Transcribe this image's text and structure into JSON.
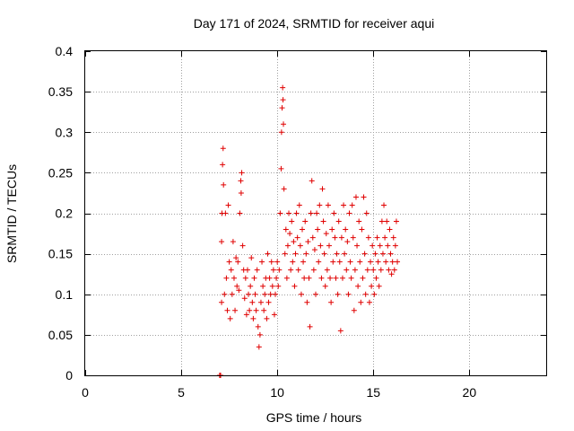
{
  "chart_data": {
    "type": "scatter",
    "title": "Day 171 of 2024, SRMTID for receiver aqui",
    "xlabel": "GPS time / hours",
    "ylabel": "SRMTID / TECUs",
    "xlim": [
      0,
      24
    ],
    "ylim": [
      0,
      0.4
    ],
    "x_ticks": [
      0,
      5,
      10,
      15,
      20
    ],
    "x_tick_labels": [
      "0",
      "5",
      "10",
      "15",
      "20"
    ],
    "y_ticks": [
      0,
      0.05,
      0.1,
      0.15,
      0.2,
      0.25,
      0.3,
      0.35,
      0.4
    ],
    "y_tick_labels": [
      "0",
      "0.05",
      "0.1",
      "0.15",
      "0.2",
      "0.25",
      "0.3",
      "0.35",
      "0.4"
    ],
    "grid": true,
    "marker": "plus",
    "marker_color": "#e00000",
    "series": [
      {
        "name": "SRMTID",
        "points": [
          [
            7.0,
            0.0
          ],
          [
            7.05,
            0.0
          ],
          [
            7.1,
            0.09
          ],
          [
            7.1,
            0.165
          ],
          [
            7.12,
            0.2
          ],
          [
            7.15,
            0.26
          ],
          [
            7.18,
            0.28
          ],
          [
            7.2,
            0.235
          ],
          [
            7.25,
            0.1
          ],
          [
            7.3,
            0.2
          ],
          [
            7.35,
            0.12
          ],
          [
            7.4,
            0.08
          ],
          [
            7.45,
            0.21
          ],
          [
            7.5,
            0.14
          ],
          [
            7.55,
            0.07
          ],
          [
            7.6,
            0.13
          ],
          [
            7.65,
            0.1
          ],
          [
            7.7,
            0.165
          ],
          [
            7.75,
            0.12
          ],
          [
            7.8,
            0.08
          ],
          [
            7.85,
            0.145
          ],
          [
            7.9,
            0.11
          ],
          [
            7.95,
            0.14
          ],
          [
            8.0,
            0.105
          ],
          [
            8.05,
            0.2
          ],
          [
            8.1,
            0.24
          ],
          [
            8.12,
            0.225
          ],
          [
            8.15,
            0.25
          ],
          [
            8.2,
            0.16
          ],
          [
            8.25,
            0.13
          ],
          [
            8.3,
            0.095
          ],
          [
            8.35,
            0.12
          ],
          [
            8.4,
            0.075
          ],
          [
            8.45,
            0.13
          ],
          [
            8.5,
            0.1
          ],
          [
            8.55,
            0.08
          ],
          [
            8.6,
            0.11
          ],
          [
            8.65,
            0.145
          ],
          [
            8.7,
            0.09
          ],
          [
            8.75,
            0.07
          ],
          [
            8.8,
            0.12
          ],
          [
            8.85,
            0.1
          ],
          [
            8.9,
            0.08
          ],
          [
            8.95,
            0.13
          ],
          [
            9.0,
            0.06
          ],
          [
            9.05,
            0.035
          ],
          [
            9.1,
            0.05
          ],
          [
            9.15,
            0.09
          ],
          [
            9.2,
            0.14
          ],
          [
            9.25,
            0.11
          ],
          [
            9.3,
            0.08
          ],
          [
            9.35,
            0.1
          ],
          [
            9.4,
            0.12
          ],
          [
            9.45,
            0.07
          ],
          [
            9.5,
            0.15
          ],
          [
            9.55,
            0.09
          ],
          [
            9.6,
            0.12
          ],
          [
            9.65,
            0.1
          ],
          [
            9.7,
            0.14
          ],
          [
            9.75,
            0.11
          ],
          [
            9.8,
            0.13
          ],
          [
            9.85,
            0.075
          ],
          [
            9.9,
            0.1
          ],
          [
            9.95,
            0.12
          ],
          [
            10.0,
            0.14
          ],
          [
            10.05,
            0.11
          ],
          [
            10.1,
            0.13
          ],
          [
            10.15,
            0.2
          ],
          [
            10.2,
            0.255
          ],
          [
            10.22,
            0.3
          ],
          [
            10.25,
            0.33
          ],
          [
            10.28,
            0.355
          ],
          [
            10.3,
            0.34
          ],
          [
            10.32,
            0.31
          ],
          [
            10.35,
            0.23
          ],
          [
            10.4,
            0.15
          ],
          [
            10.45,
            0.18
          ],
          [
            10.5,
            0.12
          ],
          [
            10.55,
            0.16
          ],
          [
            10.6,
            0.2
          ],
          [
            10.65,
            0.175
          ],
          [
            10.7,
            0.13
          ],
          [
            10.75,
            0.19
          ],
          [
            10.8,
            0.14
          ],
          [
            10.85,
            0.165
          ],
          [
            10.9,
            0.11
          ],
          [
            10.95,
            0.15
          ],
          [
            11.0,
            0.2
          ],
          [
            11.05,
            0.17
          ],
          [
            11.1,
            0.13
          ],
          [
            11.15,
            0.21
          ],
          [
            11.2,
            0.16
          ],
          [
            11.25,
            0.1
          ],
          [
            11.3,
            0.18
          ],
          [
            11.35,
            0.14
          ],
          [
            11.4,
            0.12
          ],
          [
            11.45,
            0.19
          ],
          [
            11.5,
            0.15
          ],
          [
            11.55,
            0.09
          ],
          [
            11.6,
            0.165
          ],
          [
            11.65,
            0.12
          ],
          [
            11.7,
            0.06
          ],
          [
            11.75,
            0.2
          ],
          [
            11.8,
            0.24
          ],
          [
            11.85,
            0.17
          ],
          [
            11.9,
            0.13
          ],
          [
            11.95,
            0.155
          ],
          [
            12.0,
            0.1
          ],
          [
            12.05,
            0.2
          ],
          [
            12.1,
            0.18
          ],
          [
            12.15,
            0.14
          ],
          [
            12.2,
            0.21
          ],
          [
            12.25,
            0.16
          ],
          [
            12.3,
            0.12
          ],
          [
            12.35,
            0.23
          ],
          [
            12.4,
            0.19
          ],
          [
            12.45,
            0.15
          ],
          [
            12.5,
            0.11
          ],
          [
            12.55,
            0.175
          ],
          [
            12.6,
            0.13
          ],
          [
            12.65,
            0.21
          ],
          [
            12.7,
            0.16
          ],
          [
            12.75,
            0.12
          ],
          [
            12.8,
            0.09
          ],
          [
            12.85,
            0.18
          ],
          [
            12.9,
            0.14
          ],
          [
            12.95,
            0.2
          ],
          [
            13.0,
            0.17
          ],
          [
            13.05,
            0.12
          ],
          [
            13.1,
            0.15
          ],
          [
            13.15,
            0.1
          ],
          [
            13.2,
            0.19
          ],
          [
            13.25,
            0.14
          ],
          [
            13.3,
            0.055
          ],
          [
            13.35,
            0.17
          ],
          [
            13.4,
            0.12
          ],
          [
            13.45,
            0.21
          ],
          [
            13.5,
            0.15
          ],
          [
            13.55,
            0.18
          ],
          [
            13.6,
            0.13
          ],
          [
            13.65,
            0.165
          ],
          [
            13.7,
            0.1
          ],
          [
            13.75,
            0.2
          ],
          [
            13.8,
            0.14
          ],
          [
            13.85,
            0.12
          ],
          [
            13.9,
            0.21
          ],
          [
            13.95,
            0.17
          ],
          [
            14.0,
            0.08
          ],
          [
            14.05,
            0.13
          ],
          [
            14.1,
            0.22
          ],
          [
            14.15,
            0.16
          ],
          [
            14.2,
            0.11
          ],
          [
            14.25,
            0.19
          ],
          [
            14.3,
            0.14
          ],
          [
            14.35,
            0.09
          ],
          [
            14.4,
            0.18
          ],
          [
            14.45,
            0.12
          ],
          [
            14.5,
            0.22
          ],
          [
            14.55,
            0.15
          ],
          [
            14.6,
            0.1
          ],
          [
            14.65,
            0.2
          ],
          [
            14.7,
            0.13
          ],
          [
            14.75,
            0.17
          ],
          [
            14.8,
            0.09
          ],
          [
            14.85,
            0.14
          ],
          [
            14.9,
            0.11
          ],
          [
            14.95,
            0.16
          ],
          [
            15.0,
            0.13
          ],
          [
            15.05,
            0.1
          ],
          [
            15.1,
            0.15
          ],
          [
            15.15,
            0.12
          ],
          [
            15.2,
            0.17
          ],
          [
            15.25,
            0.14
          ],
          [
            15.3,
            0.11
          ],
          [
            15.35,
            0.16
          ],
          [
            15.4,
            0.13
          ],
          [
            15.45,
            0.19
          ],
          [
            15.5,
            0.15
          ],
          [
            15.55,
            0.21
          ],
          [
            15.6,
            0.17
          ],
          [
            15.65,
            0.14
          ],
          [
            15.7,
            0.19
          ],
          [
            15.75,
            0.16
          ],
          [
            15.8,
            0.13
          ],
          [
            15.85,
            0.18
          ],
          [
            15.9,
            0.15
          ],
          [
            15.95,
            0.125
          ],
          [
            16.0,
            0.14
          ],
          [
            16.05,
            0.17
          ],
          [
            16.1,
            0.13
          ],
          [
            16.15,
            0.16
          ],
          [
            16.2,
            0.19
          ],
          [
            16.25,
            0.14
          ]
        ]
      }
    ]
  }
}
